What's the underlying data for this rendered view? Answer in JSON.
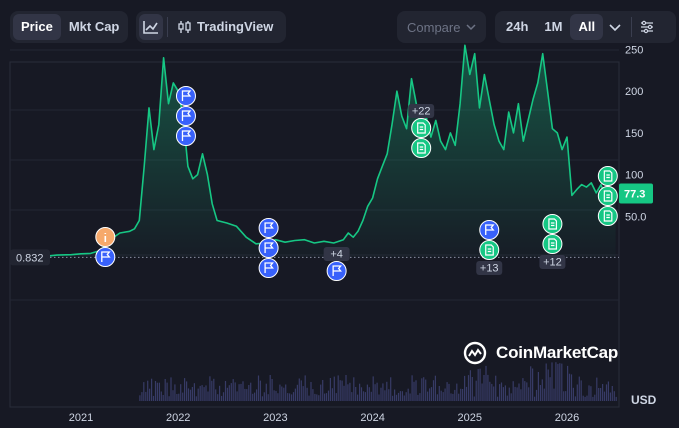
{
  "toolbar": {
    "metric_tabs": [
      "Price",
      "Mkt Cap"
    ],
    "active_metric": "Price",
    "trading_view_label": "TradingView",
    "compare_label": "Compare",
    "range_tabs": [
      "24h",
      "1M",
      "All"
    ],
    "active_range": "All"
  },
  "watermark": "CoinMarketCap",
  "currency_label": "USD",
  "colors": {
    "background": "#171924",
    "line": "#16c784",
    "current_price_tag": "#16c784",
    "news_marker": "#16c784",
    "flag_marker": "#3861fb",
    "info_marker": "#f6a96b",
    "cluster_badge": "#323546"
  },
  "chart_data": {
    "type": "area",
    "x_ticks": [
      "2021",
      "2022",
      "2023",
      "2024",
      "2025",
      "2026"
    ],
    "y_ticks": [
      "250",
      "200",
      "150",
      "100",
      "50.0"
    ],
    "y_tick_values": [
      250,
      200,
      150,
      100,
      50
    ],
    "start_price_label": "0.832",
    "current_price_label": "77.3",
    "series": [
      {
        "x": [
          2020.3,
          2020.45,
          2020.6,
          2020.75,
          2020.9,
          2021.0,
          2021.1,
          2021.2,
          2021.3,
          2021.4,
          2021.5,
          2021.55,
          2021.6,
          2021.65,
          2021.7,
          2021.75,
          2021.8,
          2021.85,
          2021.9,
          2021.95,
          2022.0,
          2022.05,
          2022.1,
          2022.15,
          2022.2,
          2022.25,
          2022.3,
          2022.35,
          2022.4,
          2022.5,
          2022.6,
          2022.7,
          2022.8,
          2022.9,
          2023.0,
          2023.1,
          2023.2,
          2023.3,
          2023.4,
          2023.5,
          2023.6,
          2023.7,
          2023.75,
          2023.8,
          2023.85,
          2023.9,
          2023.95,
          2024.0,
          2024.05,
          2024.1,
          2024.15,
          2024.2,
          2024.25,
          2024.3,
          2024.35,
          2024.4,
          2024.45,
          2024.5,
          2024.55,
          2024.6,
          2024.65,
          2024.7,
          2024.75,
          2024.8,
          2024.85,
          2024.9,
          2024.95,
          2025.0,
          2025.05,
          2025.1,
          2025.15,
          2025.2,
          2025.25,
          2025.3,
          2025.35,
          2025.4,
          2025.45,
          2025.5,
          2025.55,
          2025.6,
          2025.65,
          2025.7,
          2025.75,
          2025.8,
          2025.85,
          2025.9,
          2025.95,
          2026.0,
          2026.05,
          2026.1,
          2026.15,
          2026.2,
          2026.25,
          2026.3,
          2026.35,
          2026.4,
          2026.45,
          2026.5
        ],
        "y": [
          0.8,
          1.0,
          1.5,
          3.5,
          4.0,
          5.0,
          5.5,
          9.0,
          22.0,
          30.0,
          32.0,
          35.0,
          45.0,
          110.0,
          180.0,
          130.0,
          160.0,
          240.0,
          185.0,
          210.0,
          200.0,
          170.0,
          110.0,
          95.0,
          100.0,
          125.0,
          100.0,
          65.0,
          45.0,
          42.0,
          38.0,
          25.0,
          17.0,
          18.0,
          22.0,
          19.0,
          21.0,
          22.0,
          18.0,
          20.0,
          18.0,
          22.0,
          30.0,
          25.0,
          32.0,
          45.0,
          62.0,
          72.0,
          95.0,
          110.0,
          125.0,
          160.0,
          200.0,
          170.0,
          155.0,
          215.0,
          185.0,
          150.0,
          170.0,
          145.0,
          165.0,
          140.0,
          130.0,
          150.0,
          135.0,
          185.0,
          255.0,
          220.0,
          245.0,
          180.0,
          220.0,
          190.0,
          160.0,
          140.0,
          130.0,
          175.0,
          150.0,
          185.0,
          140.0,
          165.0,
          190.0,
          210.0,
          245.0,
          200.0,
          155.0,
          150.0,
          130.0,
          145.0,
          75.0,
          82.0,
          88.0,
          85.0,
          90.0,
          78.0,
          88.0,
          72.0,
          85.0,
          77.3
        ]
      }
    ],
    "volume_present": true,
    "markers": [
      {
        "x": 2021.25,
        "kind": "info"
      },
      {
        "x": 2021.25,
        "kind": "flag"
      },
      {
        "x": 2022.08,
        "kind": "flag"
      },
      {
        "x": 2022.08,
        "kind": "flag"
      },
      {
        "x": 2022.08,
        "kind": "flag"
      },
      {
        "x": 2022.93,
        "kind": "flag"
      },
      {
        "x": 2022.93,
        "kind": "flag"
      },
      {
        "x": 2022.93,
        "kind": "flag"
      },
      {
        "x": 2023.63,
        "kind": "flag",
        "badge": "+4"
      },
      {
        "x": 2024.5,
        "kind": "news",
        "badge": "+22"
      },
      {
        "x": 2024.5,
        "kind": "news"
      },
      {
        "x": 2025.2,
        "kind": "flag"
      },
      {
        "x": 2025.2,
        "kind": "news",
        "badge_below": "+13"
      },
      {
        "x": 2025.85,
        "kind": "news"
      },
      {
        "x": 2025.85,
        "kind": "news",
        "badge_below": "+12"
      },
      {
        "x": 2026.42,
        "kind": "news"
      },
      {
        "x": 2026.42,
        "kind": "news"
      },
      {
        "x": 2026.42,
        "kind": "news"
      }
    ]
  }
}
